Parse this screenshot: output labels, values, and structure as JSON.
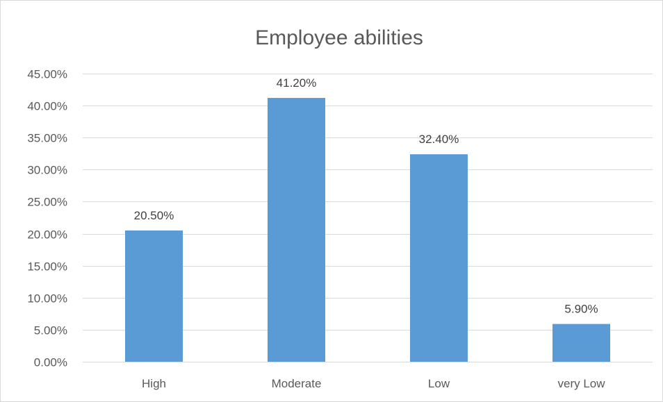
{
  "chart_data": {
    "type": "bar",
    "title": "Employee abilities",
    "xlabel": "",
    "ylabel": "",
    "categories": [
      "High",
      "Moderate",
      "Low",
      "very Low"
    ],
    "values": [
      20.5,
      41.2,
      32.4,
      5.9
    ],
    "data_labels": [
      "20.50%",
      "41.20%",
      "32.40%",
      "5.90%"
    ],
    "ylim": [
      0,
      45
    ],
    "yticks": [
      0,
      5,
      10,
      15,
      20,
      25,
      30,
      35,
      40,
      45
    ],
    "ytick_labels": [
      "0.00%",
      "5.00%",
      "10.00%",
      "15.00%",
      "20.00%",
      "25.00%",
      "30.00%",
      "35.00%",
      "40.00%",
      "45.00%"
    ],
    "grid": true,
    "legend": "none",
    "colors": {
      "bar": "#5b9bd5",
      "grid": "#d9d9d9",
      "text": "#595959",
      "label": "#404040"
    }
  }
}
